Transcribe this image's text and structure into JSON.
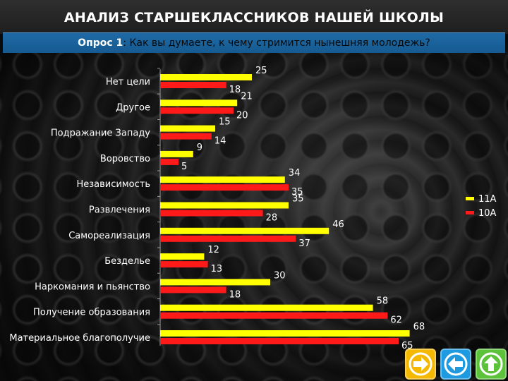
{
  "title": "АНАЛИЗ СТАРШЕКЛАССНИКОВ НАШЕЙ ШКОЛЫ",
  "subtitle": {
    "lead": "Опрос 1",
    "question": ": Как вы думаете, к чему стримится нынешняя молодежь?"
  },
  "colors": {
    "series_11a": "#ffff00",
    "series_10a": "#ff1a1a",
    "next_button": "#f5b800",
    "back_button": "#1e9be0",
    "up_button": "#5cc23a"
  },
  "nav": [
    {
      "icon": "arrow-right-icon"
    },
    {
      "icon": "arrow-left-icon"
    },
    {
      "icon": "arrow-up-icon"
    }
  ],
  "chart_data": {
    "type": "bar",
    "orientation": "horizontal",
    "title": "",
    "xlabel": "",
    "ylabel": "",
    "xlim": [
      0,
      70
    ],
    "grid": false,
    "legend_position": "right",
    "categories": [
      "Нет цели",
      "Другое",
      "Подражание Западу",
      "Воровство",
      "Независимость",
      "Развлечения",
      "Самореализация",
      "Безделье",
      "Наркомания и пьянство",
      "Получение образования",
      "Материальное благополучие"
    ],
    "series": [
      {
        "name": "11А",
        "values": [
          25,
          21,
          15,
          9,
          34,
          35,
          46,
          12,
          30,
          58,
          68
        ]
      },
      {
        "name": "10А",
        "values": [
          18,
          20,
          14,
          5,
          35,
          28,
          37,
          13,
          18,
          62,
          65
        ]
      }
    ]
  }
}
